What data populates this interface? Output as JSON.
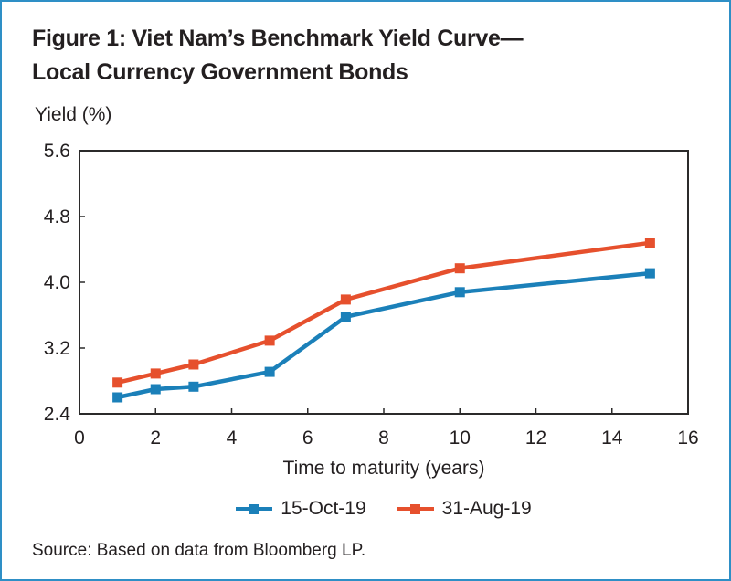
{
  "figure": {
    "title_line1": "Figure 1: Viet Nam’s Benchmark Yield Curve—",
    "title_line2": "Local Currency Government Bonds",
    "source": "Source: Based on data from Bloomberg LP."
  },
  "colors": {
    "frame_border": "#2e8fc6",
    "axis": "#2b2a2a",
    "text": "#231f20",
    "series_blue": "#1b80b9",
    "series_red": "#e6502d"
  },
  "chart_data": {
    "type": "line",
    "title": "Figure 1: Viet Nam’s Benchmark Yield Curve—Local Currency Government Bonds",
    "xlabel": "Time to maturity (years)",
    "ylabel": "Yield (%)",
    "x": [
      1,
      2,
      3,
      5,
      7,
      10,
      15
    ],
    "series": [
      {
        "name": "15-Oct-19",
        "color": "#1b80b9",
        "marker": "square",
        "values": [
          2.6,
          2.7,
          2.73,
          2.91,
          3.58,
          3.88,
          4.11
        ]
      },
      {
        "name": "31-Aug-19",
        "color": "#e6502d",
        "marker": "square",
        "values": [
          2.78,
          2.89,
          3.0,
          3.29,
          3.79,
          4.17,
          4.48
        ]
      }
    ],
    "xlim": [
      0,
      16
    ],
    "ylim": [
      2.4,
      5.6
    ],
    "x_ticks": [
      0,
      2,
      4,
      6,
      8,
      10,
      12,
      14,
      16
    ],
    "y_ticks": [
      5.6,
      4.8,
      4.0,
      3.2,
      2.4
    ],
    "grid": false,
    "legend_position": "bottom"
  }
}
